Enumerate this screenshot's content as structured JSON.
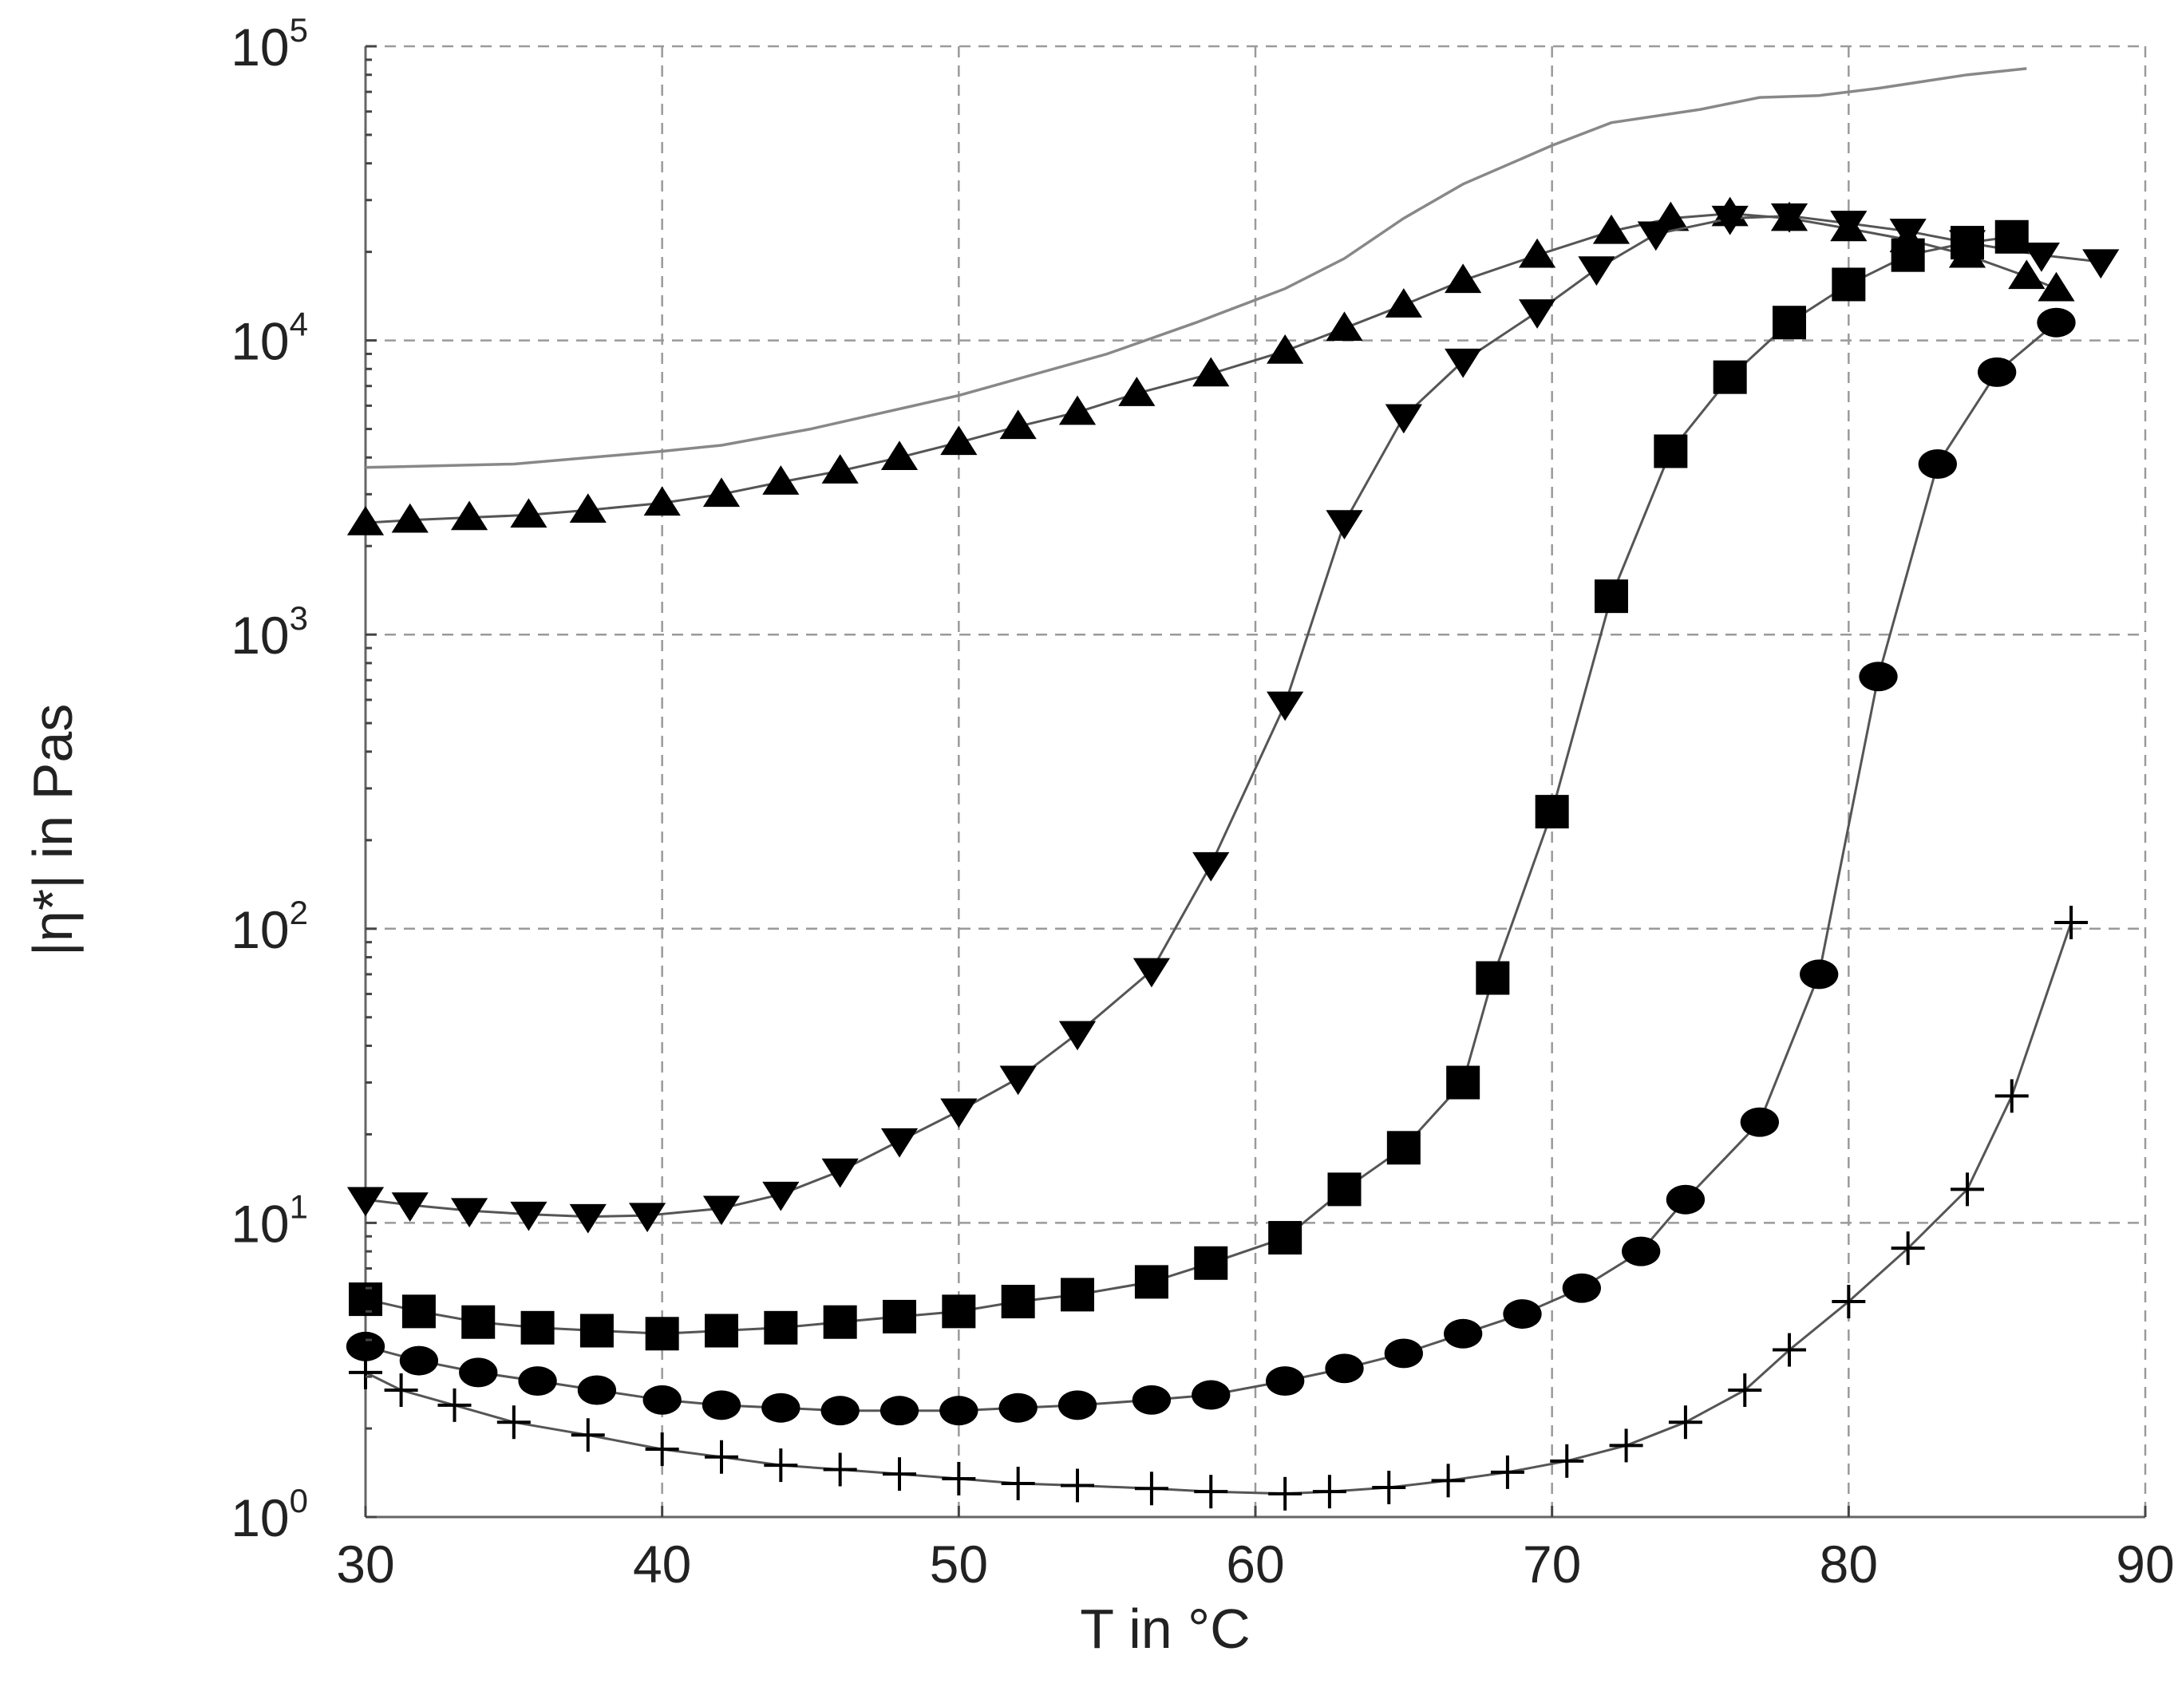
{
  "chart_data": {
    "type": "line",
    "xlabel": "T in °C",
    "ylabel": "|η*| in Pas",
    "xlim": [
      30,
      90
    ],
    "ylim": [
      1,
      100000
    ],
    "yscale": "log",
    "grid": true,
    "x_ticks": [
      "30",
      "40",
      "50",
      "60",
      "70",
      "80",
      "90"
    ],
    "y_ticks": [
      {
        "base": "10",
        "exp": "0"
      },
      {
        "base": "10",
        "exp": "1"
      },
      {
        "base": "10",
        "exp": "2"
      },
      {
        "base": "10",
        "exp": "3"
      },
      {
        "base": "10",
        "exp": "4"
      },
      {
        "base": "10",
        "exp": "5"
      }
    ],
    "colors": {
      "marker": "#000000",
      "line": "#555555",
      "bare_line": "#888888",
      "grid": "#9a9a9a"
    },
    "series": [
      {
        "marker": "none",
        "points": [
          [
            30,
            3700
          ],
          [
            35,
            3800
          ],
          [
            40,
            4200
          ],
          [
            42,
            4400
          ],
          [
            45,
            5000
          ],
          [
            50,
            6500
          ],
          [
            55,
            9000
          ],
          [
            58,
            11500
          ],
          [
            61,
            15000
          ],
          [
            63,
            19000
          ],
          [
            65,
            26000
          ],
          [
            67,
            34000
          ],
          [
            70,
            46000
          ],
          [
            72,
            55000
          ],
          [
            75,
            61000
          ],
          [
            77,
            67000
          ],
          [
            79,
            68000
          ],
          [
            81,
            72000
          ],
          [
            84,
            80000
          ],
          [
            86,
            84000
          ]
        ]
      },
      {
        "marker": "triangle-up",
        "points": [
          [
            30,
            2400
          ],
          [
            31.5,
            2450
          ],
          [
            33.5,
            2500
          ],
          [
            35.5,
            2550
          ],
          [
            37.5,
            2650
          ],
          [
            40,
            2800
          ],
          [
            42,
            3000
          ],
          [
            44,
            3300
          ],
          [
            46,
            3600
          ],
          [
            48,
            4000
          ],
          [
            50,
            4500
          ],
          [
            52,
            5100
          ],
          [
            54,
            5700
          ],
          [
            56,
            6600
          ],
          [
            58.5,
            7700
          ],
          [
            61,
            9200
          ],
          [
            63,
            11000
          ],
          [
            65,
            13200
          ],
          [
            67,
            16000
          ],
          [
            69.5,
            19500
          ],
          [
            72,
            23500
          ],
          [
            74,
            26000
          ],
          [
            76,
            27000
          ],
          [
            78,
            26000
          ],
          [
            80,
            24000
          ],
          [
            82,
            22000
          ],
          [
            84,
            19500
          ],
          [
            86,
            16500
          ],
          [
            87,
            15000
          ]
        ]
      },
      {
        "marker": "triangle-down",
        "points": [
          [
            30,
            12
          ],
          [
            31.5,
            11.5
          ],
          [
            33.5,
            11
          ],
          [
            35.5,
            10.7
          ],
          [
            37.5,
            10.5
          ],
          [
            39.5,
            10.6
          ],
          [
            42,
            11.2
          ],
          [
            44,
            12.5
          ],
          [
            46,
            15
          ],
          [
            48,
            19
          ],
          [
            50,
            24
          ],
          [
            52,
            31
          ],
          [
            54,
            44
          ],
          [
            56.5,
            72
          ],
          [
            58.5,
            165
          ],
          [
            61,
            580
          ],
          [
            63,
            2400
          ],
          [
            65,
            5500
          ],
          [
            67,
            8500
          ],
          [
            69.5,
            12500
          ],
          [
            71.5,
            17500
          ],
          [
            73.5,
            23000
          ],
          [
            76,
            26000
          ],
          [
            78,
            26500
          ],
          [
            80,
            25000
          ],
          [
            82,
            23500
          ],
          [
            84,
            21500
          ],
          [
            86.5,
            19500
          ],
          [
            88.5,
            18500
          ]
        ]
      },
      {
        "marker": "square",
        "points": [
          [
            30,
            5.5
          ],
          [
            31.8,
            5
          ],
          [
            33.8,
            4.6
          ],
          [
            35.8,
            4.4
          ],
          [
            37.8,
            4.3
          ],
          [
            40,
            4.2
          ],
          [
            42,
            4.3
          ],
          [
            44,
            4.4
          ],
          [
            46,
            4.6
          ],
          [
            48,
            4.8
          ],
          [
            50,
            5
          ],
          [
            52,
            5.4
          ],
          [
            54,
            5.7
          ],
          [
            56.5,
            6.3
          ],
          [
            58.5,
            7.3
          ],
          [
            61,
            8.9
          ],
          [
            63,
            13
          ],
          [
            65,
            18
          ],
          [
            67,
            30
          ],
          [
            68,
            68
          ],
          [
            70,
            250
          ],
          [
            72,
            1350
          ],
          [
            74,
            4200
          ],
          [
            76,
            7500
          ],
          [
            78,
            11500
          ],
          [
            80,
            15500
          ],
          [
            82,
            19500
          ],
          [
            84,
            21500
          ],
          [
            85.5,
            22500
          ]
        ]
      },
      {
        "marker": "circle",
        "points": [
          [
            30,
            3.8
          ],
          [
            31.8,
            3.4
          ],
          [
            33.8,
            3.1
          ],
          [
            35.8,
            2.9
          ],
          [
            37.8,
            2.7
          ],
          [
            40,
            2.5
          ],
          [
            42,
            2.4
          ],
          [
            44,
            2.35
          ],
          [
            46,
            2.3
          ],
          [
            48,
            2.3
          ],
          [
            50,
            2.3
          ],
          [
            52,
            2.35
          ],
          [
            54,
            2.4
          ],
          [
            56.5,
            2.5
          ],
          [
            58.5,
            2.6
          ],
          [
            61,
            2.9
          ],
          [
            63,
            3.2
          ],
          [
            65,
            3.6
          ],
          [
            67,
            4.2
          ],
          [
            69,
            4.9
          ],
          [
            71,
            6
          ],
          [
            73,
            8
          ],
          [
            74.5,
            12
          ],
          [
            77,
            22
          ],
          [
            79,
            70
          ],
          [
            81,
            720
          ],
          [
            83,
            3800
          ],
          [
            85,
            7800
          ],
          [
            87,
            11500
          ]
        ]
      },
      {
        "marker": "plus",
        "points": [
          [
            30,
            3.1
          ],
          [
            31.2,
            2.7
          ],
          [
            33,
            2.4
          ],
          [
            35,
            2.1
          ],
          [
            37.5,
            1.9
          ],
          [
            40,
            1.7
          ],
          [
            42,
            1.6
          ],
          [
            44,
            1.5
          ],
          [
            46,
            1.45
          ],
          [
            48,
            1.4
          ],
          [
            50,
            1.35
          ],
          [
            52,
            1.3
          ],
          [
            54,
            1.28
          ],
          [
            56.5,
            1.25
          ],
          [
            58.5,
            1.22
          ],
          [
            61,
            1.2
          ],
          [
            62.5,
            1.22
          ],
          [
            64.5,
            1.26
          ],
          [
            66.5,
            1.33
          ],
          [
            68.5,
            1.42
          ],
          [
            70.5,
            1.55
          ],
          [
            72.5,
            1.75
          ],
          [
            74.5,
            2.1
          ],
          [
            76.5,
            2.7
          ],
          [
            78,
            3.7
          ],
          [
            80,
            5.4
          ],
          [
            82,
            8.2
          ],
          [
            84,
            13
          ],
          [
            85.5,
            27
          ],
          [
            87.5,
            105
          ]
        ]
      }
    ]
  }
}
